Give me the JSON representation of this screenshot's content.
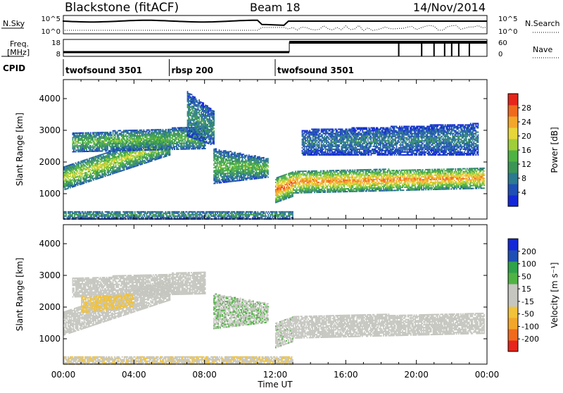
{
  "header": {
    "station": "Blackstone (fitACF)",
    "beam": "Beam 18",
    "date": "14/Nov/2014"
  },
  "noise_panel": {
    "left_label": "N.Sky",
    "left_ticks": [
      "10^5",
      "10^0"
    ],
    "right_ticks": [
      "10^5",
      "10^0"
    ],
    "right_label": "N.Search"
  },
  "freq_panel": {
    "left_label_line1": "Freq.",
    "left_label_line2": "[MHz]",
    "left_ticks": [
      "18",
      "8"
    ],
    "right_ticks": [
      "60",
      "0"
    ],
    "right_label": "Nave"
  },
  "cpid": {
    "label": "CPID",
    "segments": [
      {
        "label": "twofsound 3501",
        "start_hour": 0,
        "end_hour": 6
      },
      {
        "label": "rbsp 200",
        "start_hour": 6,
        "end_hour": 12
      },
      {
        "label": "twofsound 3501",
        "start_hour": 12,
        "end_hour": 24
      }
    ]
  },
  "x_axis": {
    "label": "Time UT",
    "ticks": [
      "00:00",
      "04:00",
      "08:00",
      "12:00",
      "16:00",
      "20:00",
      "00:00"
    ],
    "range_hours": [
      0,
      24
    ]
  },
  "chart_data": [
    {
      "type": "heatmap",
      "name": "power",
      "ylabel": "Slant Range [km]",
      "yticks": [
        "1000",
        "2000",
        "3000",
        "4000"
      ],
      "ylim": [
        200,
        4600
      ],
      "colorbar": {
        "label": "Power [dB]",
        "ticks": [
          "28",
          "24",
          "20",
          "16",
          "12",
          "8",
          "4"
        ],
        "range": [
          0,
          32
        ],
        "colors": [
          "#1428d8",
          "#1f4fb5",
          "#2b7a8f",
          "#3b9656",
          "#4fb344",
          "#9fce3a",
          "#e6d63a",
          "#f3a72a",
          "#f06a1e",
          "#e6261a"
        ]
      },
      "bands": [
        {
          "t0": 0.0,
          "t1": 6.0,
          "r0": 1100,
          "r1": 1850,
          "r0_end": 2200,
          "r1_end": 2900,
          "level": 18
        },
        {
          "t0": 0.5,
          "t1": 8.0,
          "r0": 2300,
          "r1": 2900,
          "r0_end": 2400,
          "r1_end": 3100,
          "level": 14
        },
        {
          "t0": 7.0,
          "t1": 8.5,
          "r0": 2800,
          "r1": 4200,
          "r0_end": 2500,
          "r1_end": 3600,
          "level": 10
        },
        {
          "t0": 8.5,
          "t1": 11.6,
          "r0": 1300,
          "r1": 2400,
          "r0_end": 1500,
          "r1_end": 2100,
          "level": 14
        },
        {
          "t0": 12.0,
          "t1": 13.0,
          "r0": 700,
          "r1": 1500,
          "r0_end": 900,
          "r1_end": 1700,
          "level": 26
        },
        {
          "t0": 13.0,
          "t1": 23.8,
          "r0": 1000,
          "r1": 1700,
          "r0_end": 1150,
          "r1_end": 1800,
          "level": 24
        },
        {
          "t0": 13.5,
          "t1": 23.5,
          "r0": 2200,
          "r1": 3000,
          "r0_end": 2200,
          "r1_end": 3200,
          "level": 8
        },
        {
          "t0": 0.0,
          "t1": 13.0,
          "r0": 180,
          "r1": 450,
          "r0_end": 180,
          "r1_end": 450,
          "level": 10
        }
      ]
    },
    {
      "type": "heatmap",
      "name": "velocity",
      "ylabel": "Slant Range [km]",
      "yticks": [
        "1000",
        "2000",
        "3000",
        "4000"
      ],
      "ylim": [
        200,
        4600
      ],
      "colorbar": {
        "label": "Velocity [m s⁻¹]",
        "ticks": [
          "200",
          "100",
          "50",
          "15",
          "-15",
          "-50",
          "-100",
          "-200"
        ],
        "range": [
          -250,
          250
        ],
        "colors": [
          "#e8251a",
          "#f06a1e",
          "#f3a72a",
          "#f1c23a",
          "#c6c6c0",
          "#c6c6c0",
          "#4fb344",
          "#2fa24a",
          "#1f4fb5",
          "#1428d8"
        ]
      },
      "bands": [
        {
          "t0": 0.0,
          "t1": 6.0,
          "r0": 1100,
          "r1": 1850,
          "r0_end": 2200,
          "r1_end": 2900,
          "level": 0
        },
        {
          "t0": 0.5,
          "t1": 8.0,
          "r0": 2300,
          "r1": 2900,
          "r0_end": 2400,
          "r1_end": 3100,
          "level": 0
        },
        {
          "t0": 1.0,
          "t1": 4.0,
          "r0": 1800,
          "r1": 2300,
          "r0_end": 2000,
          "r1_end": 2400,
          "level": -60
        },
        {
          "t0": 8.5,
          "t1": 11.6,
          "r0": 1300,
          "r1": 2400,
          "r0_end": 1500,
          "r1_end": 2100,
          "level": 40
        },
        {
          "t0": 12.0,
          "t1": 13.0,
          "r0": 700,
          "r1": 1500,
          "r0_end": 900,
          "r1_end": 1700,
          "level": 30
        },
        {
          "t0": 13.0,
          "t1": 23.8,
          "r0": 1000,
          "r1": 1700,
          "r0_end": 1150,
          "r1_end": 1800,
          "level": 0
        },
        {
          "t0": 0.0,
          "t1": 13.0,
          "r0": 180,
          "r1": 450,
          "r0_end": 180,
          "r1_end": 450,
          "level": -40
        }
      ]
    }
  ]
}
